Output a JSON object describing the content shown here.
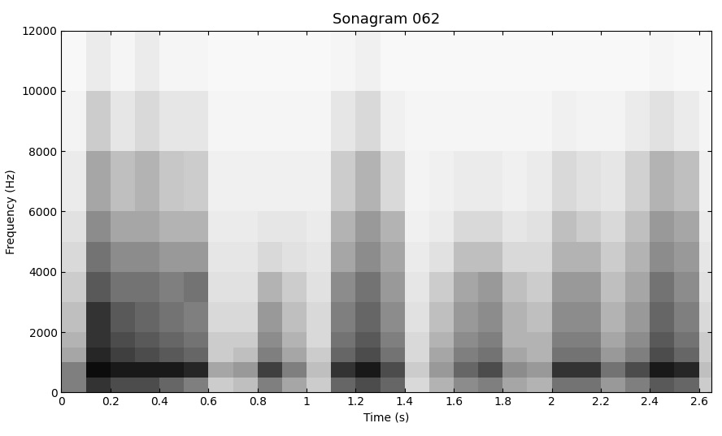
{
  "chart_data": {
    "type": "heatmap",
    "title": "Sonagram 062",
    "x_label": "Time (s)",
    "y_label": "Frequency (Hz)",
    "xlim": [
      0,
      2.65
    ],
    "xticks": [
      0,
      0.2,
      0.4,
      0.6,
      0.8,
      1,
      1.2,
      1.4,
      1.6,
      1.8,
      2,
      2.2,
      2.4,
      2.6
    ],
    "ylim": [
      0,
      12000
    ],
    "yticks": [
      0,
      2000,
      4000,
      6000,
      8000,
      10000,
      12000
    ],
    "grid": false,
    "x_edges": [
      0,
      0.1,
      0.2,
      0.3,
      0.4,
      0.5,
      0.6,
      0.7,
      0.8,
      0.9,
      1.0,
      1.1,
      1.2,
      1.3,
      1.4,
      1.5,
      1.6,
      1.7,
      1.8,
      1.9,
      2.0,
      2.1,
      2.2,
      2.3,
      2.4,
      2.5,
      2.6,
      2.65
    ],
    "y_edges": [
      0,
      500,
      1000,
      1500,
      2000,
      3000,
      4000,
      5000,
      6000,
      8000,
      10000,
      12000
    ],
    "clim": [
      0,
      1
    ],
    "cells": [
      [
        0.5,
        0.8,
        0.7,
        0.7,
        0.6,
        0.5,
        0.2,
        0.25,
        0.5,
        0.35,
        0.2,
        0.6,
        0.7,
        0.6,
        0.15,
        0.3,
        0.45,
        0.5,
        0.35,
        0.3,
        0.55,
        0.55,
        0.4,
        0.5,
        0.65,
        0.6,
        0.2
      ],
      [
        0.5,
        0.95,
        0.9,
        0.9,
        0.9,
        0.85,
        0.35,
        0.4,
        0.75,
        0.5,
        0.25,
        0.8,
        0.9,
        0.7,
        0.2,
        0.4,
        0.6,
        0.7,
        0.45,
        0.4,
        0.8,
        0.8,
        0.55,
        0.7,
        0.9,
        0.85,
        0.25
      ],
      [
        0.35,
        0.85,
        0.75,
        0.7,
        0.65,
        0.6,
        0.2,
        0.25,
        0.5,
        0.35,
        0.2,
        0.6,
        0.7,
        0.55,
        0.15,
        0.35,
        0.5,
        0.55,
        0.35,
        0.3,
        0.55,
        0.55,
        0.4,
        0.5,
        0.7,
        0.6,
        0.2
      ],
      [
        0.3,
        0.8,
        0.7,
        0.65,
        0.6,
        0.55,
        0.2,
        0.2,
        0.45,
        0.3,
        0.15,
        0.55,
        0.65,
        0.5,
        0.15,
        0.3,
        0.45,
        0.5,
        0.3,
        0.3,
        0.5,
        0.5,
        0.35,
        0.45,
        0.65,
        0.55,
        0.2
      ],
      [
        0.25,
        0.8,
        0.65,
        0.6,
        0.55,
        0.5,
        0.15,
        0.15,
        0.4,
        0.25,
        0.15,
        0.5,
        0.6,
        0.45,
        0.12,
        0.25,
        0.4,
        0.45,
        0.3,
        0.25,
        0.45,
        0.45,
        0.3,
        0.4,
        0.6,
        0.5,
        0.15
      ],
      [
        0.2,
        0.65,
        0.55,
        0.55,
        0.5,
        0.55,
        0.12,
        0.12,
        0.3,
        0.2,
        0.12,
        0.45,
        0.55,
        0.4,
        0.1,
        0.2,
        0.35,
        0.4,
        0.25,
        0.2,
        0.4,
        0.4,
        0.25,
        0.35,
        0.55,
        0.45,
        0.12
      ],
      [
        0.15,
        0.55,
        0.45,
        0.45,
        0.4,
        0.4,
        0.1,
        0.1,
        0.15,
        0.12,
        0.1,
        0.35,
        0.45,
        0.35,
        0.08,
        0.12,
        0.25,
        0.25,
        0.15,
        0.15,
        0.3,
        0.3,
        0.2,
        0.3,
        0.45,
        0.4,
        0.1
      ],
      [
        0.12,
        0.45,
        0.35,
        0.35,
        0.3,
        0.3,
        0.08,
        0.08,
        0.1,
        0.1,
        0.08,
        0.3,
        0.4,
        0.3,
        0.06,
        0.08,
        0.15,
        0.15,
        0.1,
        0.12,
        0.25,
        0.2,
        0.15,
        0.25,
        0.4,
        0.35,
        0.08
      ],
      [
        0.08,
        0.35,
        0.25,
        0.3,
        0.22,
        0.2,
        0.06,
        0.06,
        0.06,
        0.06,
        0.06,
        0.2,
        0.3,
        0.15,
        0.05,
        0.06,
        0.08,
        0.08,
        0.06,
        0.08,
        0.15,
        0.12,
        0.1,
        0.18,
        0.3,
        0.25,
        0.06
      ],
      [
        0.05,
        0.2,
        0.1,
        0.15,
        0.1,
        0.1,
        0.04,
        0.04,
        0.04,
        0.04,
        0.04,
        0.1,
        0.15,
        0.06,
        0.04,
        0.04,
        0.04,
        0.04,
        0.04,
        0.04,
        0.06,
        0.05,
        0.05,
        0.08,
        0.12,
        0.08,
        0.04
      ],
      [
        0.03,
        0.08,
        0.04,
        0.08,
        0.04,
        0.04,
        0.03,
        0.03,
        0.03,
        0.03,
        0.03,
        0.04,
        0.06,
        0.03,
        0.03,
        0.03,
        0.03,
        0.03,
        0.03,
        0.03,
        0.03,
        0.03,
        0.03,
        0.03,
        0.04,
        0.03,
        0.03
      ]
    ]
  }
}
